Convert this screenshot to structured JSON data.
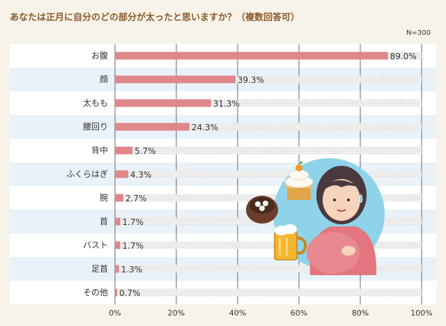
{
  "title": "あなたは正月に自分のどの部分が太ったと思いますか？（複数回答可）",
  "note": "N=300",
  "chart_data": {
    "type": "bar",
    "orientation": "horizontal",
    "categories": [
      "お腹",
      "顔",
      "太もも",
      "腰回り",
      "背中",
      "ふくらはぎ",
      "腕",
      "首",
      "バスト",
      "足首",
      "その他"
    ],
    "values": [
      89.0,
      39.3,
      31.3,
      24.3,
      5.7,
      4.3,
      2.7,
      1.7,
      1.7,
      1.3,
      0.7
    ],
    "value_labels": [
      "89.0%",
      "39.3%",
      "31.3%",
      "24.3%",
      "5.7%",
      "4.3%",
      "2.7%",
      "1.7%",
      "1.7%",
      "1.3%",
      "0.7%"
    ],
    "xlim": [
      0,
      100
    ],
    "xticks": [
      "0%",
      "20%",
      "40%",
      "60%",
      "80%",
      "100%"
    ],
    "bar_color": "#e0878a",
    "track_color": "#d8d8d8",
    "grid": true
  },
  "illustration": {
    "icons": [
      "kagami-mochi-icon",
      "oshiruko-bowl-icon",
      "beer-mug-icon",
      "woman-with-belly-icon"
    ]
  }
}
